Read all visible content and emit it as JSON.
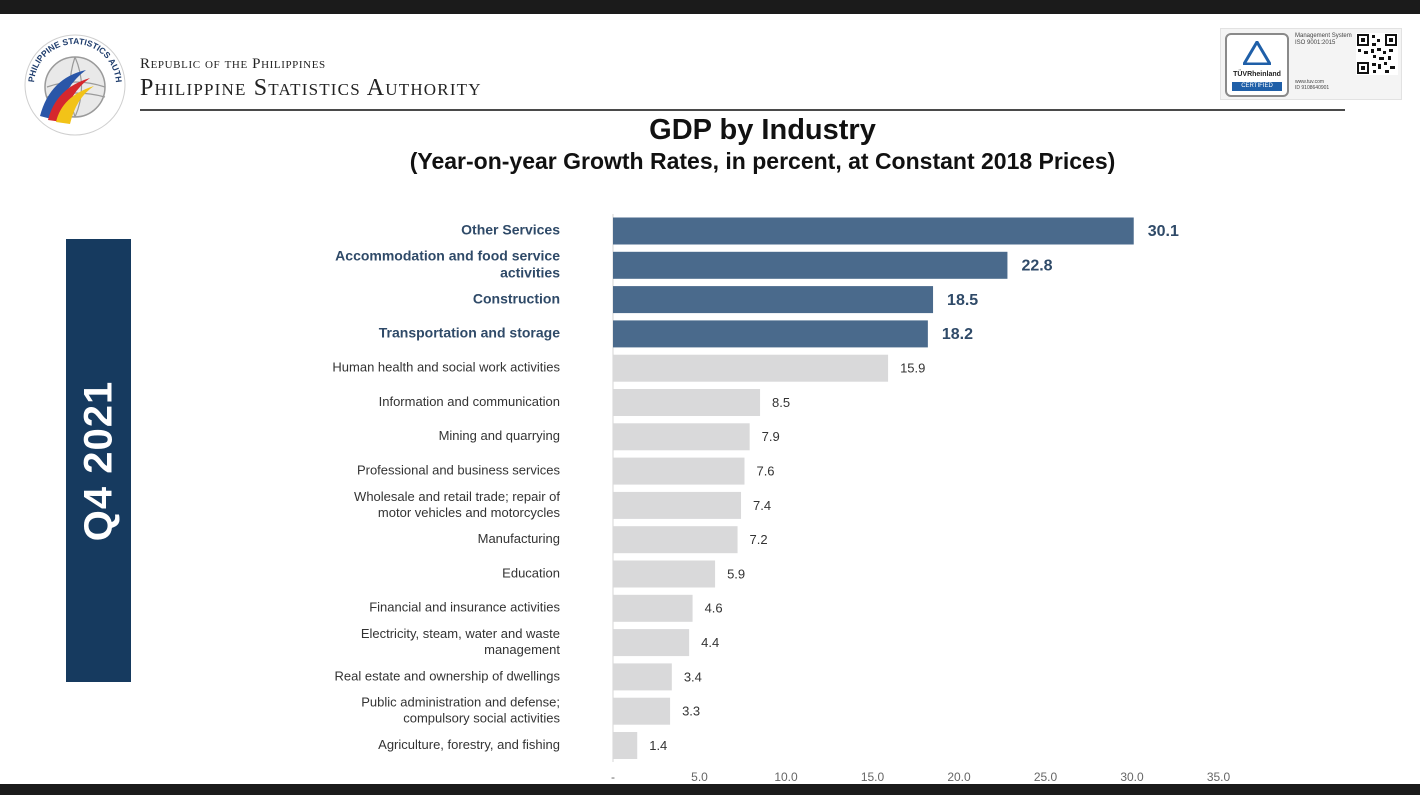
{
  "header": {
    "republic": "Republic of the Philippines",
    "agency": "Philippine Statistics Authority",
    "logo_text": "PHILIPPINE STATISTICS AUTHORITY",
    "certification": {
      "brand": "TÜVRheinland",
      "badge": "CERTIFIED",
      "system": "Management System",
      "standard": "ISO 9001:2015",
      "website": "www.tuv.com",
      "id": "ID 9108640901"
    }
  },
  "period_label": "Q4 2021",
  "colors": {
    "highlight": "#4a6a8c",
    "normal": "#d9d9da",
    "period_box": "#163a5f"
  },
  "chart_data": {
    "type": "bar",
    "orientation": "horizontal",
    "title": "GDP by Industry",
    "subtitle": "(Year-on-year Growth Rates, in percent, at Constant 2018 Prices)",
    "categories": [
      [
        "Other Services"
      ],
      [
        "Accommodation and food service",
        "activities"
      ],
      [
        "Construction"
      ],
      [
        "Transportation and storage"
      ],
      [
        "Human health and social work activities"
      ],
      [
        "Information and communication"
      ],
      [
        "Mining and quarrying"
      ],
      [
        "Professional and business services"
      ],
      [
        "Wholesale and retail trade; repair of",
        "motor vehicles and motorcycles"
      ],
      [
        "Manufacturing"
      ],
      [
        "Education"
      ],
      [
        "Financial and insurance activities"
      ],
      [
        "Electricity, steam, water and waste",
        "management"
      ],
      [
        "Real estate and ownership of dwellings"
      ],
      [
        "Public administration and defense;",
        "compulsory social activities"
      ],
      [
        "Agriculture, forestry, and fishing"
      ]
    ],
    "values": [
      30.1,
      22.8,
      18.5,
      18.2,
      15.9,
      8.5,
      7.9,
      7.6,
      7.4,
      7.2,
      5.9,
      4.6,
      4.4,
      3.4,
      3.3,
      1.4
    ],
    "highlighted": [
      true,
      true,
      true,
      true,
      false,
      false,
      false,
      false,
      false,
      false,
      false,
      false,
      false,
      false,
      false,
      false
    ],
    "xlim": [
      0,
      35
    ],
    "x_ticks": [
      "-",
      "5.0",
      "10.0",
      "15.0",
      "20.0",
      "25.0",
      "30.0",
      "35.0"
    ],
    "grid": false,
    "legend": "none"
  }
}
